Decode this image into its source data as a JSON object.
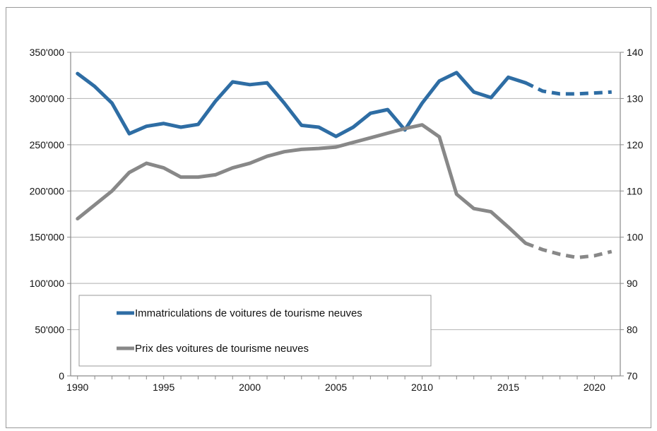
{
  "chart_data": {
    "type": "line",
    "grid": "horizontal",
    "legend_position": "bottom-left inside plot",
    "x": [
      1990,
      1991,
      1992,
      1993,
      1994,
      1995,
      1996,
      1997,
      1998,
      1999,
      2000,
      2001,
      2002,
      2003,
      2004,
      2005,
      2006,
      2007,
      2008,
      2009,
      2010,
      2011,
      2012,
      2013,
      2014,
      2015,
      2016,
      2017,
      2018,
      2019,
      2020,
      2021
    ],
    "xlim": [
      1989.6,
      2021.5
    ],
    "x_ticks": [
      "1990",
      "1995",
      "2000",
      "2005",
      "2010",
      "2015",
      "2020"
    ],
    "y_left": {
      "ylim": [
        0,
        350000
      ],
      "ticks": [
        "0",
        "50'000",
        "100'000",
        "150'000",
        "200'000",
        "250'000",
        "300'000",
        "350'000"
      ]
    },
    "y_right": {
      "ylim": [
        70,
        140
      ],
      "ticks": [
        "70",
        "80",
        "90",
        "100",
        "110",
        "120",
        "130",
        "140"
      ]
    },
    "series": [
      {
        "name": "Immatriculations de voitures de tourisme neuves",
        "axis": "left",
        "color": "#2e6da4",
        "values": [
          327000,
          313000,
          295000,
          262000,
          270000,
          273000,
          269000,
          272000,
          297000,
          318000,
          315000,
          317000,
          295000,
          271000,
          269000,
          259000,
          269000,
          284000,
          288000,
          266000,
          295000,
          319000,
          328000,
          307000,
          301000,
          323000,
          317000,
          308000,
          305000,
          305000,
          306000,
          307000
        ],
        "projection_from_x": 2016
      },
      {
        "name": "Prix des voitures de tourisme neuves",
        "axis": "right",
        "color": "#888888",
        "values": [
          104,
          107,
          110,
          114,
          116,
          115,
          113,
          113,
          113.5,
          115,
          116,
          117.5,
          118.5,
          119,
          119.2,
          119.5,
          120.5,
          121.5,
          122.5,
          123.5,
          124.3,
          121.7,
          109.3,
          106.2,
          105.5,
          102.2,
          98.7,
          97.3,
          96.3,
          95.6,
          96,
          96.9
        ],
        "projection_from_x": 2016
      }
    ],
    "styles": {
      "grid_color": "#bdbdbd",
      "axis_color": "#8a8a8a"
    }
  }
}
